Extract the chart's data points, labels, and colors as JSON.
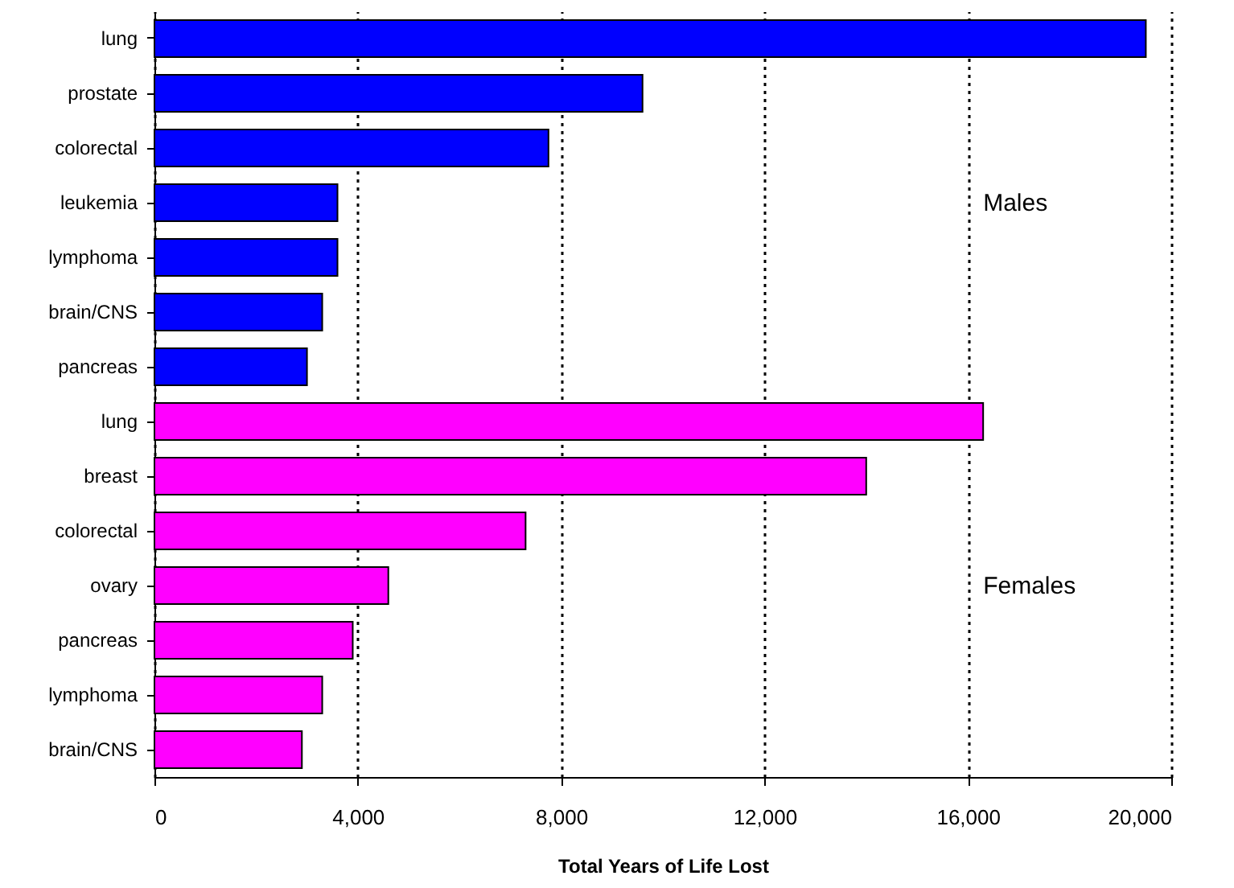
{
  "chart_data": {
    "type": "bar",
    "orientation": "horizontal",
    "xlabel": "Total Years of Life Lost",
    "categories": [
      "lung",
      "prostate",
      "colorectal",
      "leukemia",
      "lymphoma",
      "brain/CNS",
      "pancreas",
      "lung",
      "breast",
      "colorectal",
      "ovary",
      "pancreas",
      "lymphoma",
      "brain/CNS"
    ],
    "series": [
      {
        "name": "Males",
        "color": "#0000ff",
        "values": [
          19500,
          9600,
          7750,
          3600,
          3600,
          3300,
          3000,
          null,
          null,
          null,
          null,
          null,
          null,
          null
        ]
      },
      {
        "name": "Females",
        "color": "#ff00ff",
        "values": [
          null,
          null,
          null,
          null,
          null,
          null,
          null,
          16300,
          14000,
          7300,
          4600,
          3900,
          3300,
          2900
        ]
      }
    ],
    "xlim": [
      0,
      20000
    ],
    "xticks": [
      0,
      {
        "value": 4000,
        "label": "4,000"
      },
      {
        "value": 8000,
        "label": "8,000"
      },
      {
        "value": 12000,
        "label": "12,000"
      },
      {
        "value": 16000,
        "label": "16,000"
      },
      {
        "value": 20000,
        "label": "20,000"
      }
    ],
    "grid": "x"
  }
}
